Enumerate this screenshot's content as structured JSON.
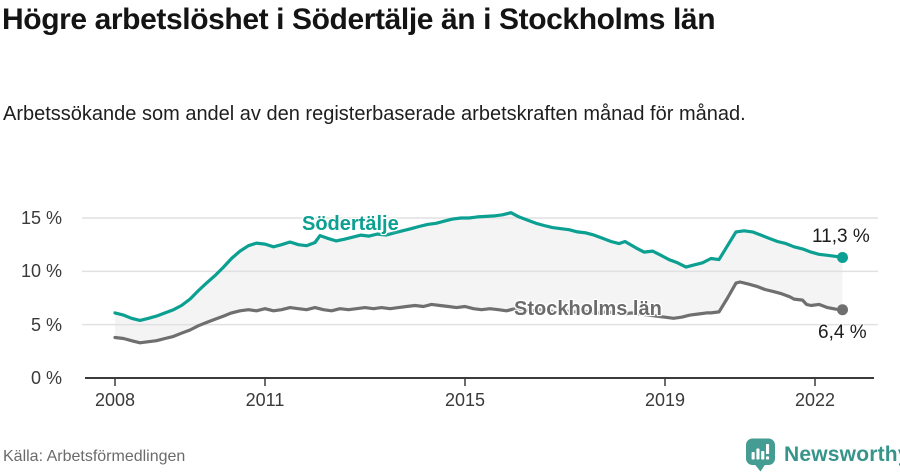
{
  "header": {
    "title": "Högre arbetslöshet i Södertälje än i Stockholms län",
    "subtitle": "Arbetssökande som andel av den registerbaserade arbetskraften månad för månad."
  },
  "footer": {
    "source": "Källa: Arbetsförmedlingen",
    "brand_name": "Newsworthy",
    "brand_icon": "newsworthy-bar-chart-badge-icon"
  },
  "colors": {
    "accent_teal": "#0ba091",
    "line_gray": "#6f6f6f",
    "band": "#f4f4f5",
    "grid": "#e1e1e1",
    "axis": "#3b3b3b",
    "text_dark": "#1d1d1d",
    "brand_teal": "#449c92"
  },
  "chart_data": {
    "type": "line",
    "title": "Högre arbetslöshet i Södertälje än i Stockholms län",
    "xlabel": "",
    "ylabel": "",
    "ylim": [
      0,
      16
    ],
    "x_range_years": [
      2008,
      2022.6
    ],
    "grid": "horizontal",
    "legend_position": "inline-labels-on-lines",
    "band_fill_between_series": true,
    "y_ticks": [
      {
        "value": 15,
        "label": "15 %"
      },
      {
        "value": 10,
        "label": "10 %"
      },
      {
        "value": 5,
        "label": "5 %"
      },
      {
        "value": 0,
        "label": "0 %"
      }
    ],
    "x_ticks": [
      {
        "year": 2008,
        "label": "2008"
      },
      {
        "year": 2011,
        "label": "2011"
      },
      {
        "year": 2015,
        "label": "2015"
      },
      {
        "year": 2019,
        "label": "2019"
      },
      {
        "year": 2022,
        "label": "2022"
      }
    ],
    "series": [
      {
        "name": "Södertälje",
        "color": "#0ba091",
        "end_label": "11,3 %",
        "end_value": 11.3,
        "points": [
          [
            2008.0,
            6.1
          ],
          [
            2008.17,
            5.9
          ],
          [
            2008.33,
            5.6
          ],
          [
            2008.5,
            5.4
          ],
          [
            2008.67,
            5.6
          ],
          [
            2008.83,
            5.8
          ],
          [
            2009.0,
            6.1
          ],
          [
            2009.17,
            6.4
          ],
          [
            2009.33,
            6.8
          ],
          [
            2009.5,
            7.4
          ],
          [
            2009.67,
            8.2
          ],
          [
            2009.83,
            8.9
          ],
          [
            2010.0,
            9.6
          ],
          [
            2010.17,
            10.4
          ],
          [
            2010.33,
            11.2
          ],
          [
            2010.5,
            11.9
          ],
          [
            2010.67,
            12.4
          ],
          [
            2010.83,
            12.65
          ],
          [
            2011.0,
            12.55
          ],
          [
            2011.17,
            12.3
          ],
          [
            2011.33,
            12.5
          ],
          [
            2011.5,
            12.75
          ],
          [
            2011.67,
            12.5
          ],
          [
            2011.83,
            12.4
          ],
          [
            2012.0,
            12.7
          ],
          [
            2012.1,
            13.35
          ],
          [
            2012.25,
            13.1
          ],
          [
            2012.42,
            12.85
          ],
          [
            2012.58,
            13.0
          ],
          [
            2012.75,
            13.2
          ],
          [
            2012.92,
            13.4
          ],
          [
            2013.08,
            13.3
          ],
          [
            2013.25,
            13.5
          ],
          [
            2013.42,
            13.4
          ],
          [
            2013.58,
            13.6
          ],
          [
            2013.75,
            13.8
          ],
          [
            2013.92,
            14.0
          ],
          [
            2014.08,
            14.2
          ],
          [
            2014.25,
            14.4
          ],
          [
            2014.42,
            14.5
          ],
          [
            2014.58,
            14.7
          ],
          [
            2014.75,
            14.9
          ],
          [
            2014.92,
            15.0
          ],
          [
            2015.08,
            15.0
          ],
          [
            2015.25,
            15.1
          ],
          [
            2015.42,
            15.15
          ],
          [
            2015.58,
            15.2
          ],
          [
            2015.75,
            15.3
          ],
          [
            2015.92,
            15.5
          ],
          [
            2016.08,
            15.1
          ],
          [
            2016.25,
            14.8
          ],
          [
            2016.42,
            14.5
          ],
          [
            2016.58,
            14.3
          ],
          [
            2016.75,
            14.1
          ],
          [
            2016.92,
            14.0
          ],
          [
            2017.08,
            13.9
          ],
          [
            2017.25,
            13.7
          ],
          [
            2017.42,
            13.6
          ],
          [
            2017.58,
            13.4
          ],
          [
            2017.75,
            13.1
          ],
          [
            2017.92,
            12.8
          ],
          [
            2018.08,
            12.6
          ],
          [
            2018.2,
            12.8
          ],
          [
            2018.42,
            12.2
          ],
          [
            2018.58,
            11.8
          ],
          [
            2018.75,
            11.9
          ],
          [
            2018.92,
            11.5
          ],
          [
            2019.08,
            11.1
          ],
          [
            2019.25,
            10.8
          ],
          [
            2019.42,
            10.4
          ],
          [
            2019.58,
            10.6
          ],
          [
            2019.75,
            10.8
          ],
          [
            2019.92,
            11.2
          ],
          [
            2020.08,
            11.1
          ],
          [
            2020.25,
            12.4
          ],
          [
            2020.42,
            13.7
          ],
          [
            2020.58,
            13.8
          ],
          [
            2020.75,
            13.7
          ],
          [
            2020.92,
            13.4
          ],
          [
            2021.08,
            13.1
          ],
          [
            2021.25,
            12.8
          ],
          [
            2021.42,
            12.6
          ],
          [
            2021.58,
            12.3
          ],
          [
            2021.75,
            12.1
          ],
          [
            2021.92,
            11.8
          ],
          [
            2022.08,
            11.6
          ],
          [
            2022.25,
            11.5
          ],
          [
            2022.42,
            11.4
          ],
          [
            2022.55,
            11.3
          ]
        ]
      },
      {
        "name": "Stockholms län",
        "color": "#6f6f6f",
        "end_label": "6,4 %",
        "end_value": 6.4,
        "points": [
          [
            2008.0,
            3.8
          ],
          [
            2008.17,
            3.7
          ],
          [
            2008.33,
            3.5
          ],
          [
            2008.5,
            3.3
          ],
          [
            2008.67,
            3.4
          ],
          [
            2008.83,
            3.5
          ],
          [
            2009.0,
            3.7
          ],
          [
            2009.17,
            3.9
          ],
          [
            2009.33,
            4.2
          ],
          [
            2009.5,
            4.5
          ],
          [
            2009.67,
            4.9
          ],
          [
            2009.83,
            5.2
          ],
          [
            2010.0,
            5.5
          ],
          [
            2010.17,
            5.8
          ],
          [
            2010.33,
            6.1
          ],
          [
            2010.5,
            6.3
          ],
          [
            2010.67,
            6.4
          ],
          [
            2010.83,
            6.3
          ],
          [
            2011.0,
            6.5
          ],
          [
            2011.17,
            6.3
          ],
          [
            2011.33,
            6.4
          ],
          [
            2011.5,
            6.6
          ],
          [
            2011.67,
            6.5
          ],
          [
            2011.83,
            6.4
          ],
          [
            2012.0,
            6.6
          ],
          [
            2012.17,
            6.4
          ],
          [
            2012.33,
            6.3
          ],
          [
            2012.5,
            6.5
          ],
          [
            2012.67,
            6.4
          ],
          [
            2012.83,
            6.5
          ],
          [
            2013.0,
            6.6
          ],
          [
            2013.17,
            6.5
          ],
          [
            2013.33,
            6.6
          ],
          [
            2013.5,
            6.5
          ],
          [
            2013.67,
            6.6
          ],
          [
            2013.83,
            6.7
          ],
          [
            2014.0,
            6.8
          ],
          [
            2014.17,
            6.7
          ],
          [
            2014.33,
            6.9
          ],
          [
            2014.5,
            6.8
          ],
          [
            2014.67,
            6.7
          ],
          [
            2014.83,
            6.6
          ],
          [
            2015.0,
            6.7
          ],
          [
            2015.17,
            6.5
          ],
          [
            2015.33,
            6.4
          ],
          [
            2015.5,
            6.5
          ],
          [
            2015.67,
            6.4
          ],
          [
            2015.83,
            6.3
          ],
          [
            2016.0,
            6.5
          ],
          [
            2016.17,
            6.4
          ],
          [
            2016.33,
            6.3
          ],
          [
            2016.5,
            6.4
          ],
          [
            2016.67,
            6.3
          ],
          [
            2016.83,
            6.2
          ],
          [
            2017.0,
            6.3
          ],
          [
            2017.17,
            6.2
          ],
          [
            2017.33,
            6.3
          ],
          [
            2017.5,
            6.2
          ],
          [
            2017.67,
            6.1
          ],
          [
            2017.83,
            6.2
          ],
          [
            2018.0,
            6.1
          ],
          [
            2018.17,
            6.0
          ],
          [
            2018.33,
            6.1
          ],
          [
            2018.5,
            6.0
          ],
          [
            2018.67,
            5.9
          ],
          [
            2018.83,
            5.8
          ],
          [
            2019.0,
            5.7
          ],
          [
            2019.17,
            5.6
          ],
          [
            2019.33,
            5.7
          ],
          [
            2019.5,
            5.9
          ],
          [
            2019.67,
            6.0
          ],
          [
            2019.83,
            6.1
          ],
          [
            2019.92,
            6.1
          ],
          [
            2020.08,
            6.2
          ],
          [
            2020.25,
            7.5
          ],
          [
            2020.42,
            8.9
          ],
          [
            2020.5,
            9.0
          ],
          [
            2020.67,
            8.8
          ],
          [
            2020.83,
            8.6
          ],
          [
            2021.0,
            8.3
          ],
          [
            2021.17,
            8.1
          ],
          [
            2021.33,
            7.9
          ],
          [
            2021.5,
            7.6
          ],
          [
            2021.58,
            7.4
          ],
          [
            2021.75,
            7.3
          ],
          [
            2021.83,
            6.9
          ],
          [
            2021.92,
            6.8
          ],
          [
            2022.08,
            6.9
          ],
          [
            2022.25,
            6.6
          ],
          [
            2022.42,
            6.45
          ],
          [
            2022.55,
            6.4
          ]
        ]
      }
    ]
  }
}
